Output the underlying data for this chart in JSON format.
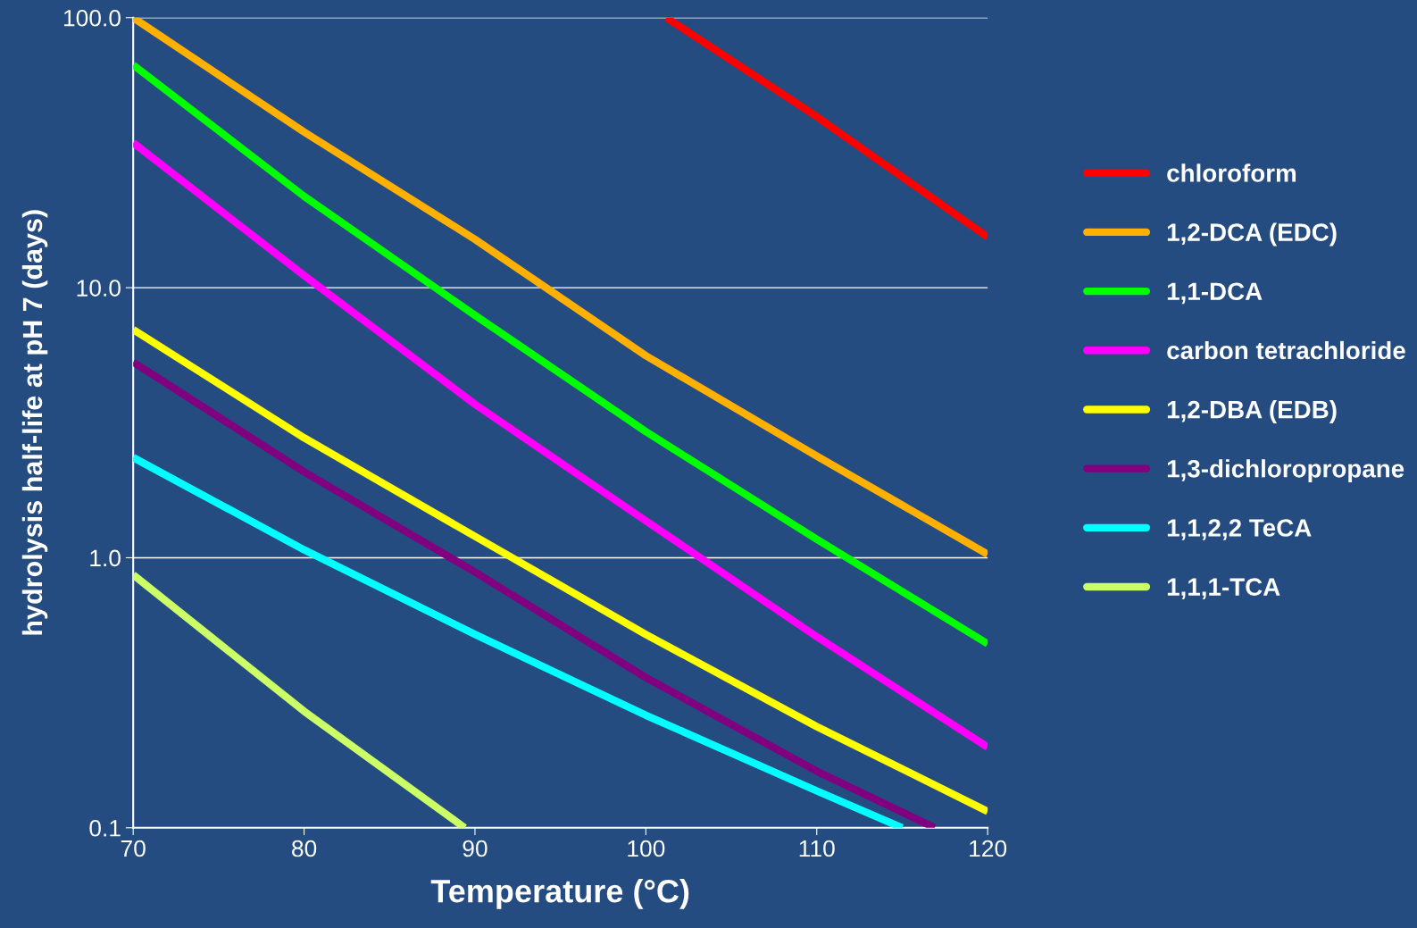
{
  "chart_data": {
    "type": "line",
    "xlabel": "Temperature (°C)",
    "ylabel": "hydrolysis half-life at pH 7 (days)",
    "x": [
      70,
      80,
      90,
      100,
      110,
      120
    ],
    "xlim": [
      70,
      120
    ],
    "xticks": [
      70,
      80,
      90,
      100,
      110,
      120
    ],
    "ylim": [
      0.1,
      100
    ],
    "yticks": [
      {
        "value": 0.1,
        "label": "0.1"
      },
      {
        "value": 1,
        "label": "1.0"
      },
      {
        "value": 10,
        "label": "10.0"
      },
      {
        "value": 100,
        "label": "100.0"
      }
    ],
    "log": "y",
    "grid": "y",
    "legend": "right",
    "marker": "none",
    "line_style": "solid",
    "series": [
      {
        "name": "chloroform",
        "color": "#ff0000",
        "x": [
          101.2,
          110,
          120
        ],
        "values": [
          100,
          43,
          15.4
        ]
      },
      {
        "name": "1,2-DCA (EDC)",
        "color": "#ffb000",
        "values": [
          100,
          37.7,
          15.1,
          5.6,
          2.38,
          1.03
        ]
      },
      {
        "name": "1,1-DCA",
        "color": "#00ff00",
        "values": [
          66.8,
          21.8,
          7.9,
          2.93,
          1.17,
          0.48
        ]
      },
      {
        "name": "carbon tetrachloride",
        "color": "#ff00ff",
        "values": [
          34.4,
          11.1,
          3.7,
          1.37,
          0.51,
          0.199
        ]
      },
      {
        "name": "1,2-DBA (EDB)",
        "color": "#ffff00",
        "values": [
          7.0,
          2.78,
          1.2,
          0.52,
          0.237,
          0.115
        ]
      },
      {
        "name": "1,3-dichloropropane",
        "color": "#800080",
        "x": [
          70,
          80,
          90,
          100,
          110,
          116.9
        ],
        "values": [
          5.3,
          2.08,
          0.885,
          0.36,
          0.162,
          0.1
        ]
      },
      {
        "name": "1,1,2,2 TeCA",
        "color": "#00ffff",
        "x": [
          70,
          80,
          90,
          100,
          110,
          115.0
        ],
        "values": [
          2.35,
          1.07,
          0.52,
          0.261,
          0.137,
          0.1
        ]
      },
      {
        "name": "1,1,1-TCA",
        "color": "#ccff66",
        "x": [
          70,
          80,
          89.4
        ],
        "values": [
          0.865,
          0.27,
          0.1
        ]
      }
    ]
  }
}
